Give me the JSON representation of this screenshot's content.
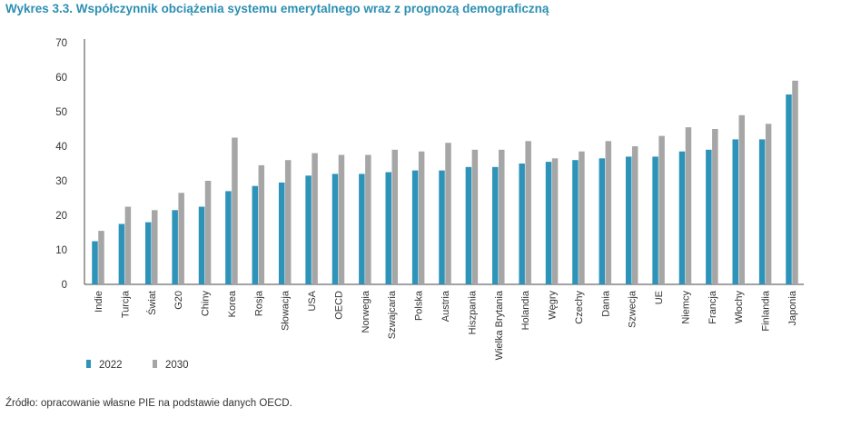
{
  "title": "Wykres 3.3. Współczynnik obciążenia systemu emerytalnego wraz z prognozą demograficzną",
  "source": "Źródło: opracowanie własne PIE na podstawie danych OECD.",
  "chart_data": {
    "type": "bar",
    "title": "Wykres 3.3. Współczynnik obciążenia systemu emerytalnego wraz z prognozą demograficzną",
    "xlabel": "",
    "ylabel": "",
    "ylim": [
      0,
      70
    ],
    "yticks": [
      0,
      10,
      20,
      30,
      40,
      50,
      60,
      70
    ],
    "grid": false,
    "legend_position": "bottom-left",
    "categories": [
      "Indie",
      "Turcja",
      "Świat",
      "G20",
      "Chiny",
      "Korea",
      "Rosja",
      "Słowacja",
      "USA",
      "OECD",
      "Norwegia",
      "Szwajcaria",
      "Polska",
      "Austria",
      "Hiszpania",
      "Wielka Brytania",
      "Holandia",
      "Węgry",
      "Czechy",
      "Dania",
      "Szwecja",
      "UE",
      "Niemcy",
      "Francja",
      "Włochy",
      "Finlandia",
      "Japonia"
    ],
    "series": [
      {
        "name": "2022",
        "color": "#2e93b9",
        "values": [
          12.5,
          17.5,
          18,
          21.5,
          22.5,
          27,
          28.5,
          29.5,
          31.5,
          32,
          32,
          32.5,
          33,
          33,
          34,
          34,
          35,
          35.5,
          36,
          36.5,
          37,
          37,
          38.5,
          39,
          42,
          42,
          55
        ]
      },
      {
        "name": "2030",
        "color": "#a6a6a6",
        "values": [
          15.5,
          22.5,
          21.5,
          26.5,
          30,
          42.5,
          34.5,
          36,
          38,
          37.5,
          37.5,
          39,
          38.5,
          41,
          39,
          39,
          41.5,
          36.5,
          38.5,
          41.5,
          40,
          43,
          45.5,
          45,
          49,
          46.5,
          59
        ]
      }
    ]
  }
}
